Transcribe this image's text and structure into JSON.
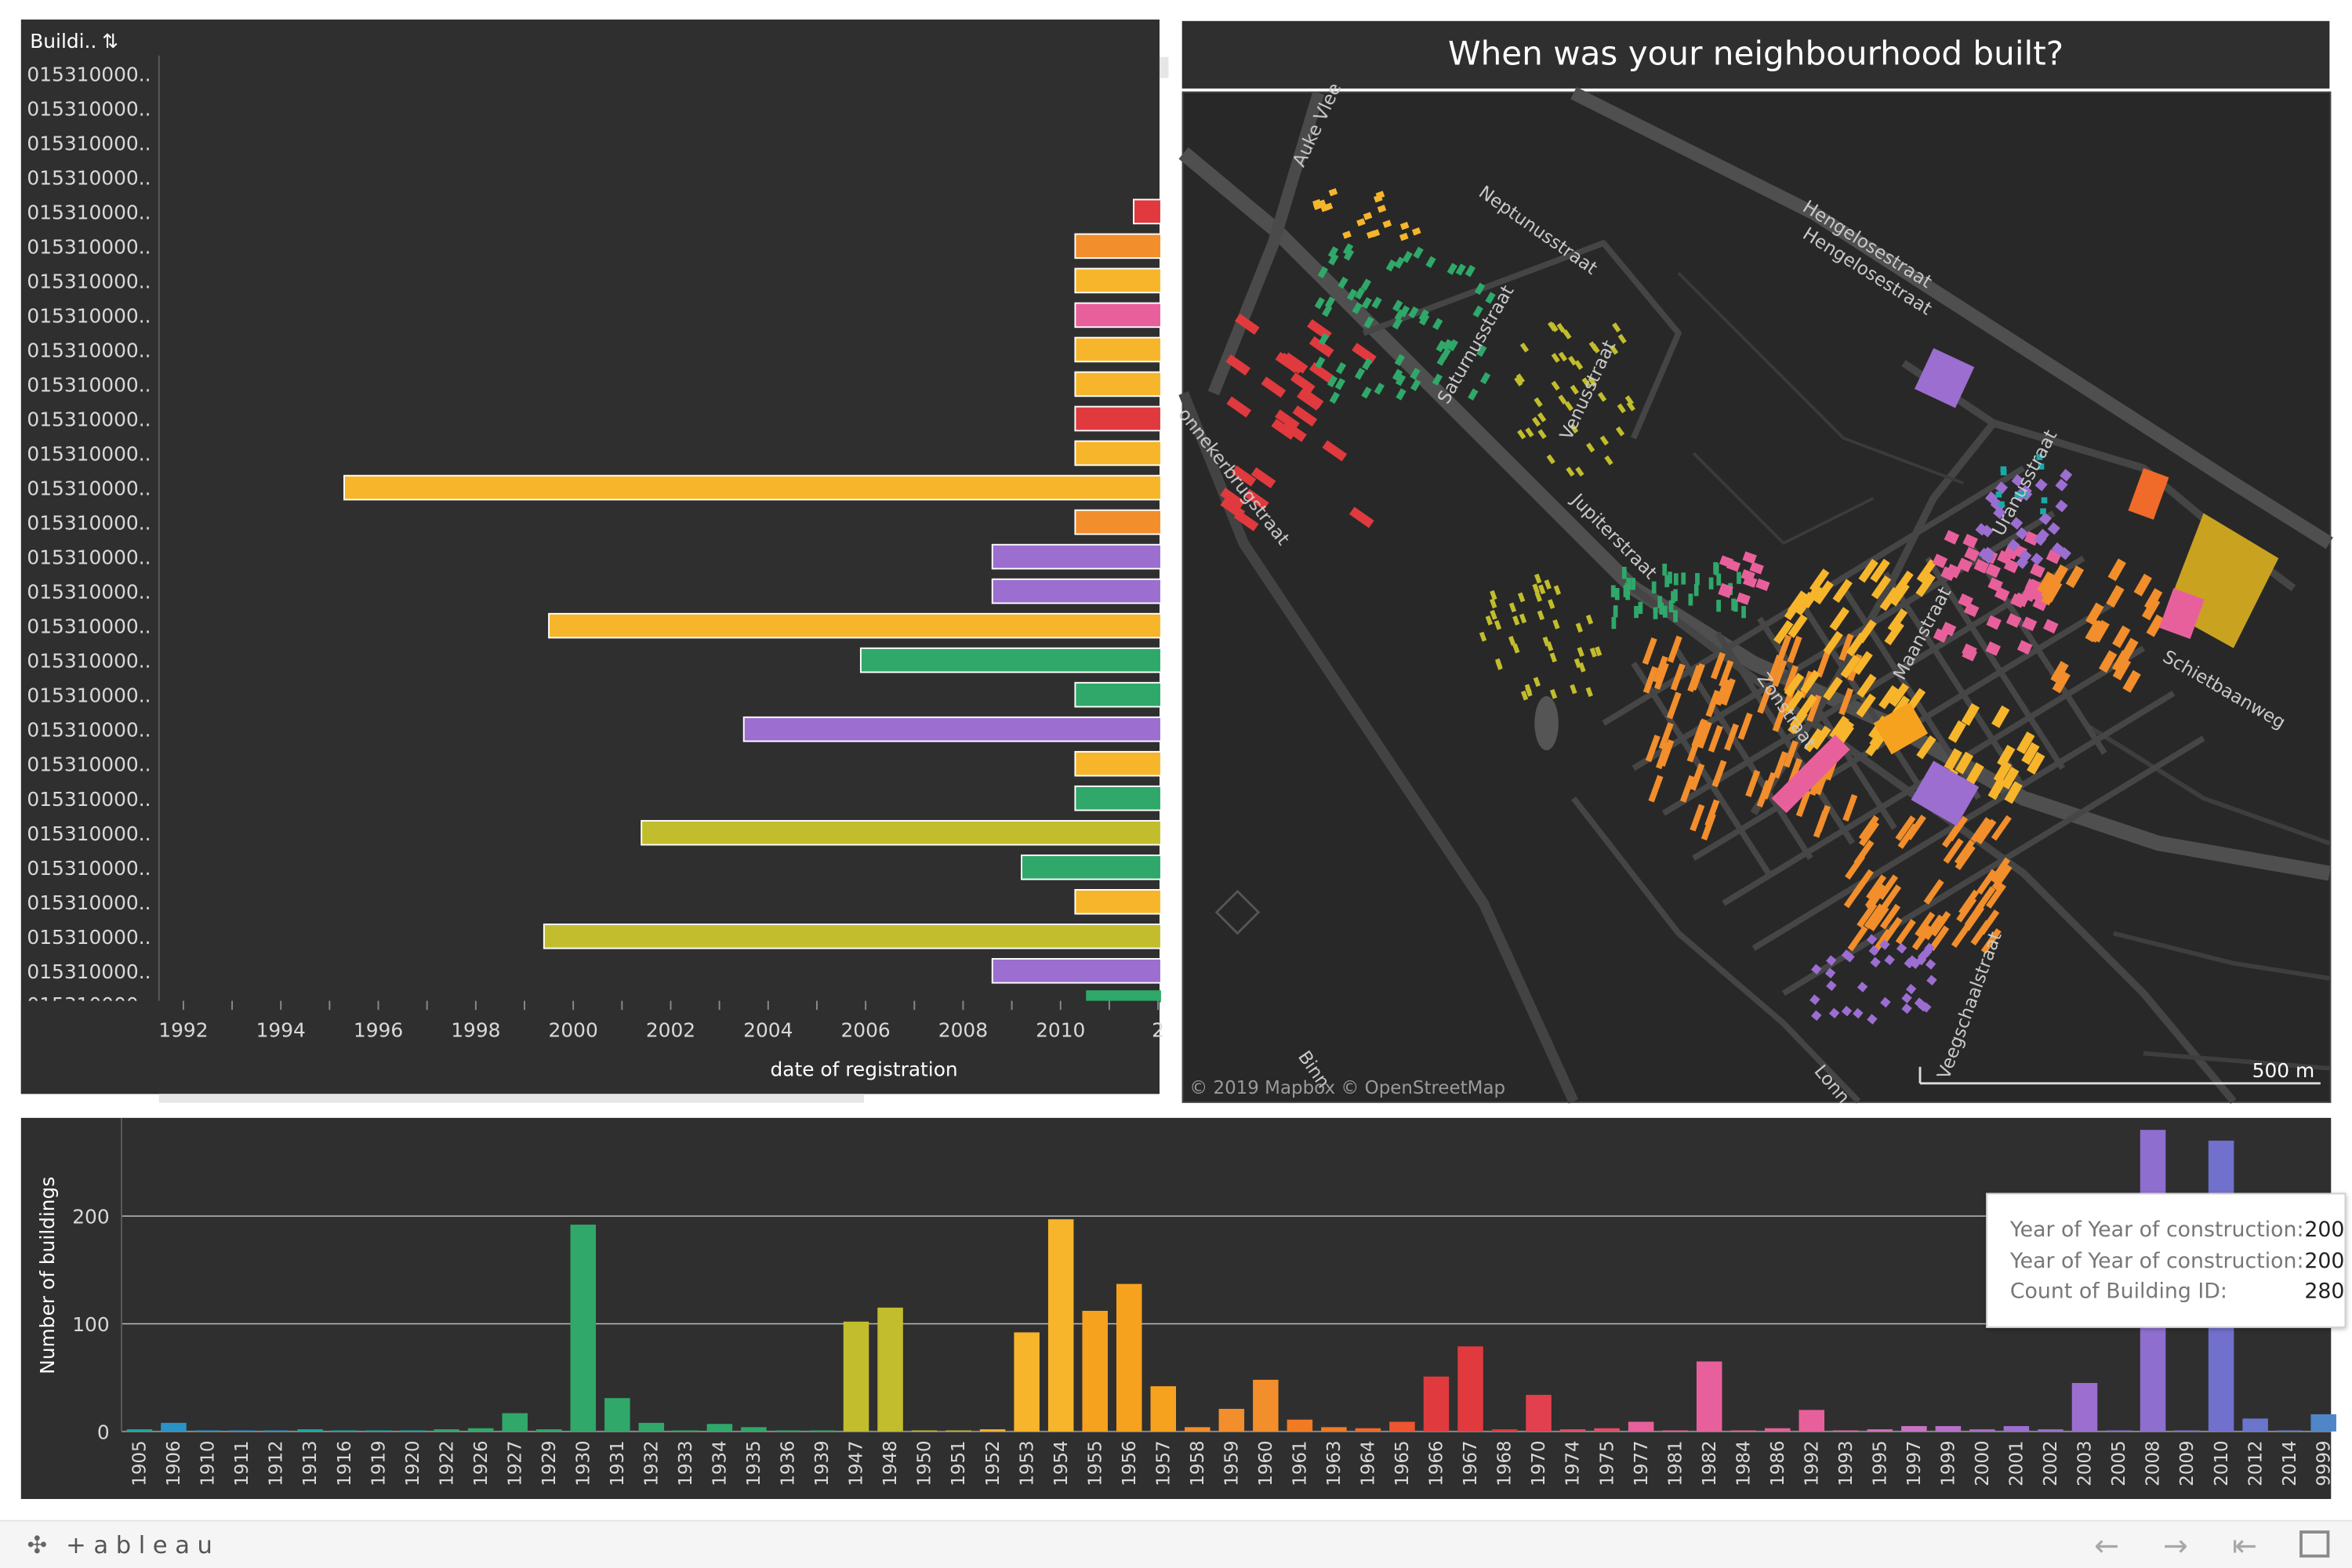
{
  "dashboard": {
    "title": "When was your neighbourhood built?",
    "left_header": "Buildi..",
    "row_label": "015310000..",
    "left_xlabel": "date of registration",
    "left_ticks": [
      "1992",
      "1994",
      "1996",
      "1998",
      "2000",
      "2002",
      "2004",
      "2006",
      "2008",
      "2010",
      "2"
    ],
    "attribution": "© 2019 Mapbox © OpenStreetMap",
    "scale_label": "500 m",
    "brand": "+ableau",
    "streets": [
      "Neptunusstraat",
      "Hengelosestraat",
      "Hengelosestraat",
      "Saturnusstraat",
      "Venusstraat",
      "Jupiterstraat",
      "Uranusstraat",
      "Maanstraat",
      "Zonstraat",
      "Schietbaanweg",
      "Veegschaalstraat",
      "onnekerbrugstraat",
      "Auke Vlee",
      "Binn",
      "Lonn"
    ]
  },
  "tooltip": {
    "rows": [
      {
        "label": "Year of Year of construction:",
        "value": "200"
      },
      {
        "label": "Year of Year of construction:",
        "value": "200"
      },
      {
        "label": "Count of Building ID:",
        "value": "280"
      }
    ]
  },
  "colors": {
    "background": "#2f2f2f",
    "map_background": "#282828",
    "red": "#e03a3e",
    "green": "#2fa86a",
    "olive": "#c2bd2c",
    "yellow": "#f7b52b",
    "orange": "#f28e2b",
    "pink": "#e8609b",
    "purple": "#9b6ed0",
    "teal": "#1aa9a7"
  },
  "chart_data": [
    {
      "type": "bar",
      "orientation": "horizontal",
      "xlabel": "date of registration",
      "ylabel": "Buildi..",
      "categories": [
        "015310000..",
        "015310000..",
        "015310000..",
        "015310000..",
        "015310000..",
        "015310000..",
        "015310000..",
        "015310000..",
        "015310000..",
        "015310000..",
        "015310000..",
        "015310000..",
        "015310000..",
        "015310000..",
        "015310000..",
        "015310000..",
        "015310000..",
        "015310000..",
        "015310000..",
        "015310000..",
        "015310000..",
        "015310000..",
        "015310000..",
        "015310000..",
        "015310000..",
        "015310000..",
        "015310000.."
      ],
      "start_years": [
        null,
        null,
        null,
        null,
        2011.5,
        2010.3,
        2010.3,
        2010.3,
        2010.3,
        2010.3,
        2010.3,
        2010.3,
        1995.3,
        2010.3,
        2008.6,
        2008.6,
        1999.5,
        2005.9,
        2010.3,
        2003.5,
        2010.3,
        2010.3,
        2001.4,
        2009.2,
        2010.3,
        1999.4,
        2008.6
      ],
      "colors": [
        "",
        "",
        "",
        "",
        "#e03a3e",
        "#f28e2b",
        "#f7b52b",
        "#e8609b",
        "#f7b52b",
        "#f7b52b",
        "#e03a3e",
        "#f7b52b",
        "#f7b52b",
        "#f28e2b",
        "#9b6ed0",
        "#9b6ed0",
        "#f7b52b",
        "#2fa86a",
        "#2fa86a",
        "#9b6ed0",
        "#f7b52b",
        "#2fa86a",
        "#c2bd2c",
        "#2fa86a",
        "#f7b52b",
        "#c2bd2c",
        "#9b6ed0"
      ],
      "xlim": [
        1991.5,
        2012
      ]
    },
    {
      "type": "bar",
      "ylabel": "Number of buildings",
      "xlabel": "",
      "ylim": [
        0,
        280
      ],
      "yticks": [
        0,
        100,
        200
      ],
      "categories": [
        "1905",
        "1906",
        "1910",
        "1911",
        "1912",
        "1913",
        "1916",
        "1919",
        "1920",
        "1922",
        "1926",
        "1927",
        "1929",
        "1930",
        "1931",
        "1932",
        "1933",
        "1934",
        "1935",
        "1936",
        "1939",
        "1947",
        "1948",
        "1950",
        "1951",
        "1952",
        "1953",
        "1954",
        "1955",
        "1956",
        "1957",
        "1958",
        "1959",
        "1960",
        "1961",
        "1963",
        "1964",
        "1965",
        "1966",
        "1967",
        "1968",
        "1970",
        "1974",
        "1975",
        "1977",
        "1981",
        "1982",
        "1984",
        "1986",
        "1992",
        "1993",
        "1995",
        "1997",
        "1999",
        "2000",
        "2001",
        "2002",
        "2003",
        "2005",
        "2008",
        "2009",
        "2010",
        "2012",
        "2014",
        "9999"
      ],
      "values": [
        2,
        8,
        1,
        1,
        1,
        2,
        1,
        1,
        1,
        2,
        3,
        17,
        2,
        192,
        31,
        8,
        1,
        7,
        4,
        1,
        1,
        102,
        115,
        1,
        1,
        2,
        92,
        197,
        112,
        137,
        42,
        4,
        21,
        48,
        11,
        4,
        3,
        9,
        51,
        79,
        2,
        34,
        2,
        3,
        9,
        1,
        65,
        1,
        3,
        20,
        1,
        2,
        5,
        5,
        2,
        5,
        2,
        45,
        1,
        280,
        1,
        270,
        12,
        1,
        16
      ],
      "colors": [
        "#1aa9a7",
        "#2a93c6",
        "#2a93c6",
        "#2a93c6",
        "#2a93c6",
        "#1aa9a7",
        "#1aa9a7",
        "#1aa9a7",
        "#1aa9a7",
        "#2fa86a",
        "#2fa86a",
        "#2fa86a",
        "#2fa86a",
        "#2fa86a",
        "#2fa86a",
        "#2fa86a",
        "#2fa86a",
        "#2fa86a",
        "#2fa86a",
        "#2fa86a",
        "#2fa86a",
        "#c2bd2c",
        "#c2bd2c",
        "#c2bd2c",
        "#c2bd2c",
        "#f7b52b",
        "#f7b52b",
        "#f7b52b",
        "#f7a21f",
        "#f7a21f",
        "#f7a21f",
        "#f28e2b",
        "#f28e2b",
        "#f28e2b",
        "#f07b22",
        "#f07b22",
        "#f06a2a",
        "#ef5530",
        "#e03a3e",
        "#e03a3e",
        "#e03a3e",
        "#e3404f",
        "#e34d68",
        "#e34d68",
        "#e8609b",
        "#e8609b",
        "#e8609b",
        "#e8609b",
        "#e8609b",
        "#e8609b",
        "#e06aa8",
        "#d46fb8",
        "#c872c2",
        "#b870c8",
        "#a86ecc",
        "#9b6ed0",
        "#9b6ed0",
        "#9b6ed0",
        "#8e6fd0",
        "#8e6fd0",
        "#7f70d0",
        "#7170cc",
        "#6a75cc",
        "#5e80cc",
        "#4f86c8"
      ]
    }
  ]
}
